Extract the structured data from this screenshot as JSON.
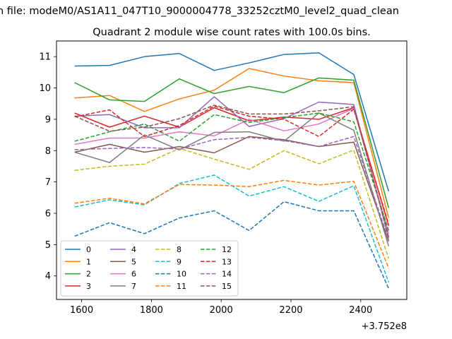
{
  "figure": {
    "suptitle": "n file: modeM0/AS1A11_047T10_9000004778_33252cztM0_level2_quad_clean",
    "offset_label": "+3.752e8"
  },
  "chart_data": {
    "type": "line",
    "title": "Quadrant 2 module wise count rates with 100.0s bins.",
    "xlabel": "",
    "ylabel": "",
    "x": [
      1580,
      1680,
      1780,
      1880,
      1980,
      2080,
      2180,
      2280,
      2380,
      2480
    ],
    "xlim": [
      1528,
      2532
    ],
    "ylim": [
      3.25,
      11.5
    ],
    "xticks": [
      1600,
      1800,
      2000,
      2200,
      2400
    ],
    "yticks": [
      4,
      5,
      6,
      7,
      8,
      9,
      10,
      11
    ],
    "grid": false,
    "legend_position": "lower-left",
    "series": [
      {
        "name": "0",
        "color": "#1f77b4",
        "dash": "solid",
        "values": [
          10.7,
          10.72,
          11.0,
          11.1,
          10.56,
          10.8,
          11.07,
          11.12,
          10.43,
          6.7
        ]
      },
      {
        "name": "1",
        "color": "#ff7f0e",
        "dash": "solid",
        "values": [
          9.68,
          9.76,
          9.25,
          9.65,
          9.93,
          10.62,
          10.38,
          10.23,
          10.17,
          5.85
        ]
      },
      {
        "name": "2",
        "color": "#2ca02c",
        "dash": "solid",
        "values": [
          10.17,
          9.62,
          9.57,
          10.29,
          9.82,
          10.05,
          9.85,
          10.32,
          10.25,
          6.17
        ]
      },
      {
        "name": "3",
        "color": "#d62728",
        "dash": "solid",
        "values": [
          9.2,
          8.75,
          9.1,
          8.75,
          9.37,
          8.95,
          9.07,
          9.0,
          9.37,
          5.6
        ]
      },
      {
        "name": "4",
        "color": "#9467bd",
        "dash": "solid",
        "values": [
          9.1,
          9.15,
          8.73,
          8.73,
          9.72,
          8.77,
          9.02,
          9.55,
          9.47,
          5.2
        ]
      },
      {
        "name": "5",
        "color": "#8c564b",
        "dash": "solid",
        "values": [
          7.95,
          8.2,
          7.95,
          8.13,
          7.93,
          8.45,
          8.35,
          8.13,
          8.27,
          5.1
        ]
      },
      {
        "name": "6",
        "color": "#e377c2",
        "dash": "solid",
        "values": [
          8.2,
          8.4,
          8.4,
          8.6,
          8.47,
          9.0,
          8.63,
          8.85,
          9.35,
          5.35
        ]
      },
      {
        "name": "7",
        "color": "#7f7f7f",
        "dash": "solid",
        "values": [
          7.95,
          7.62,
          8.5,
          8.02,
          8.58,
          8.6,
          8.3,
          9.2,
          8.65,
          4.95
        ]
      },
      {
        "name": "8",
        "color": "#bcbd22",
        "dash": "dashed",
        "values": [
          7.37,
          7.5,
          7.57,
          8.07,
          7.73,
          7.4,
          8.0,
          7.58,
          8.02,
          4.55
        ]
      },
      {
        "name": "9",
        "color": "#17becf",
        "dash": "dashed",
        "values": [
          6.2,
          6.43,
          6.27,
          6.95,
          7.22,
          6.55,
          6.85,
          6.38,
          6.88,
          3.8
        ]
      },
      {
        "name": "10",
        "color": "#1f77b4",
        "dash": "dashed",
        "values": [
          5.27,
          5.7,
          5.35,
          5.85,
          6.08,
          5.45,
          6.37,
          6.08,
          6.08,
          3.6
        ]
      },
      {
        "name": "11",
        "color": "#ff7f0e",
        "dash": "dashed",
        "values": [
          6.32,
          6.48,
          6.3,
          6.92,
          6.9,
          6.85,
          7.05,
          6.9,
          7.02,
          4.25
        ]
      },
      {
        "name": "12",
        "color": "#2ca02c",
        "dash": "dashed",
        "values": [
          8.3,
          8.6,
          8.85,
          8.3,
          9.15,
          8.9,
          9.05,
          9.2,
          8.92,
          5.45
        ]
      },
      {
        "name": "13",
        "color": "#d62728",
        "dash": "dashed",
        "values": [
          9.08,
          9.3,
          8.45,
          8.8,
          9.42,
          9.1,
          9.0,
          8.45,
          9.32,
          5.65
        ]
      },
      {
        "name": "14",
        "color": "#9467bd",
        "dash": "dashed",
        "values": [
          8.03,
          8.07,
          8.1,
          8.05,
          8.35,
          8.42,
          8.32,
          8.13,
          8.45,
          5.15
        ]
      },
      {
        "name": "15",
        "color": "#8c564b",
        "dash": "dashed",
        "values": [
          9.1,
          8.62,
          8.75,
          9.02,
          9.45,
          9.17,
          9.17,
          9.27,
          9.4,
          5.25
        ]
      }
    ]
  }
}
